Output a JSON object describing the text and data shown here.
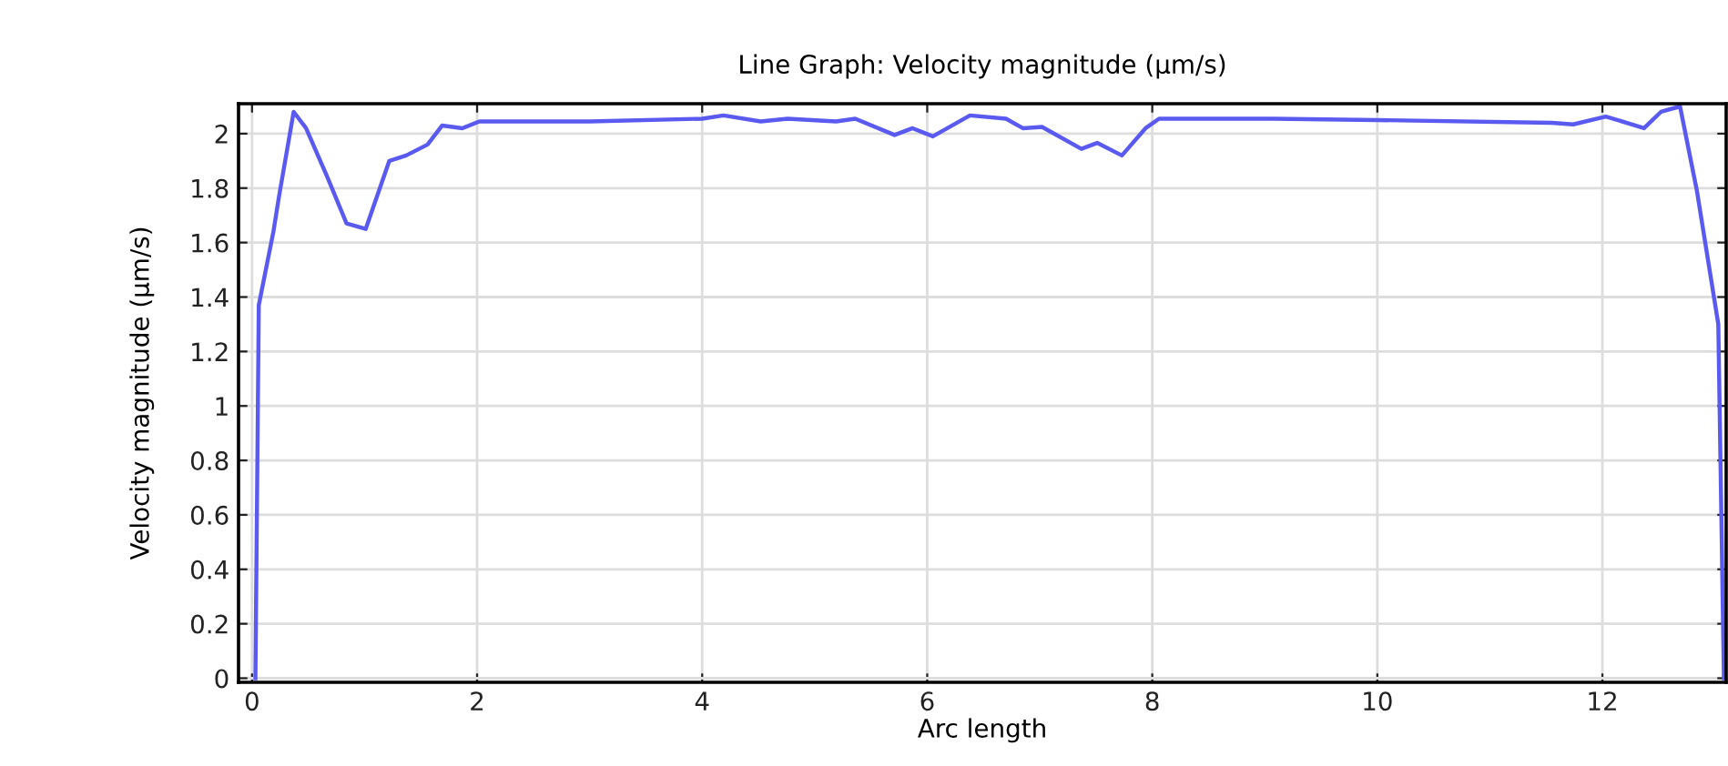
{
  "chart_data": {
    "type": "line",
    "title": "Line Graph: Velocity magnitude (µm/s)",
    "xlabel": "Arc length",
    "ylabel": "Velocity magnitude (µm/s)",
    "x": [
      0.03,
      0.06,
      0.19,
      0.24,
      0.37,
      0.48,
      0.67,
      0.84,
      1.01,
      1.22,
      1.37,
      1.56,
      1.69,
      1.87,
      2.02,
      3.0,
      4.0,
      4.19,
      4.52,
      4.76,
      5.19,
      5.36,
      5.71,
      5.87,
      6.05,
      6.38,
      6.7,
      6.85,
      7.02,
      7.37,
      7.51,
      7.73,
      7.94,
      8.06,
      9.07,
      10.0,
      11.55,
      11.74,
      12.03,
      12.37,
      12.52,
      12.69,
      12.84,
      13.03,
      13.08
    ],
    "series": [
      {
        "color": "#5a5af0",
        "values": [
          0,
          1.37,
          1.64,
          1.77,
          2.08,
          2.02,
          1.84,
          1.67,
          1.65,
          1.9,
          1.92,
          1.96,
          2.03,
          2.02,
          2.045,
          2.045,
          2.055,
          2.067,
          2.045,
          2.055,
          2.045,
          2.055,
          1.995,
          2.02,
          1.99,
          2.067,
          2.055,
          2.02,
          2.025,
          1.944,
          1.966,
          1.92,
          2.02,
          2.055,
          2.055,
          2.05,
          2.04,
          2.034,
          2.063,
          2.02,
          2.08,
          2.1,
          1.79,
          1.3,
          0
        ]
      }
    ],
    "xlim": [
      -0.12,
      13.1
    ],
    "ylim": [
      -0.015,
      2.11
    ],
    "xticks": [
      0,
      2,
      4,
      6,
      8,
      10,
      12
    ],
    "yticks": [
      0,
      0.2,
      0.4,
      0.6,
      0.8,
      1,
      1.2,
      1.4,
      1.6,
      1.8,
      2
    ],
    "grid": true,
    "marker": "none",
    "line_style": "solid",
    "legend": false
  }
}
